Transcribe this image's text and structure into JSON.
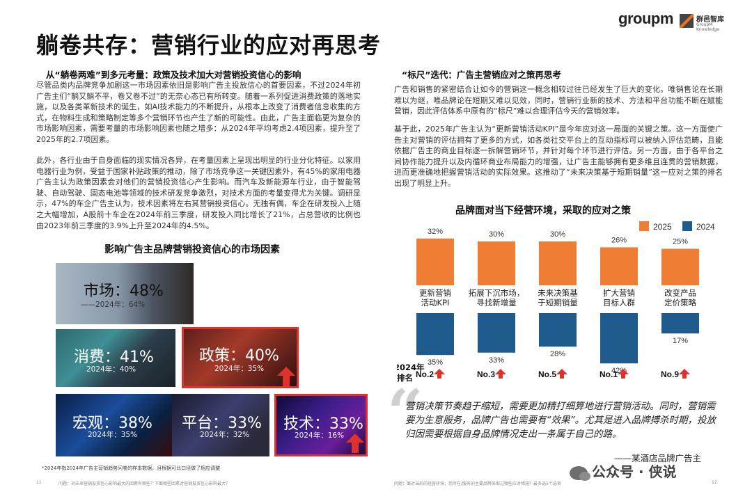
{
  "header": {
    "logo_groupm": "groupm",
    "logo_qunyi_cn": "群邑智库",
    "logo_qunyi_en": "GroupM Knowledge"
  },
  "title": "躺卷共存：营销行业的应对再思考",
  "left": {
    "subtitle": "从“躺卷两难”到多元考量：政策及技术加大对营销投资信心的影响",
    "p1": "尽管品类内品牌竞争加剧这一市场因素依旧是影响广告主投放信心的首要因素，不过2024年初广告主们“躺又躺不平，卷又卷不过”的无奈心态已有所转变。随着一系列促进消费政策的落地实施，以及各类革新技术的诞生，如AI技术能力的不断提升，从根本上改变了消费者信息收集的方式，在物料生成和策略制定等多个营销环节也产生了新的可能性。由此，广告主面临更为复杂的市场影响因素，需要考量的市场影响因素也随之增多：从2024年平均考虑2.4项因素，提升至了2025年的2.7项因素。",
    "p2": "此外，各行业由于自身面临的现实情况各异，在考量因素上呈现出明显的行业分化特征。以家用电器行业为例，受益于国家补贴政策的推动，除了市场竞争这一关键因素外，有45%的家用电器广告主认为政策因素会对他们的营销投资信心产生影响。而汽车及新能源车行业，由于智能驾驶、自动驾驶、固态电池等领域的技术研发竞争激烈，对技术方面的考量变得尤为关键。调研显示，47%的车企广告主认为，技术因素将左右其营销投资信心。无独有偶，车企在研发投入上随之大幅增加，A股前十车企在2024年前三季度，研发投入同比增长了21%，占总营收的比例也由2023年前三季度的3.9%上升至2024年的4.5%。",
    "factors_title": "影响广告主品牌营销投资信心的市场因素",
    "tiles": [
      {
        "name": "市场",
        "main": "市场：48%",
        "prev": "——2024年：64%",
        "value": 48,
        "prev_value": 64
      },
      {
        "name": "消费",
        "main": "消费：41%",
        "prev": "2024年：40%",
        "value": 41,
        "prev_value": 40
      },
      {
        "name": "政策",
        "main": "政策：40%",
        "prev": "2024年：35%",
        "value": 40,
        "prev_value": 35
      },
      {
        "name": "宏观",
        "main": "宏观：38%",
        "prev": "2024年：35%",
        "value": 38,
        "prev_value": 35
      },
      {
        "name": "平台",
        "main": "平台：33%",
        "prev": "2024年：32%",
        "value": 33,
        "prev_value": 32
      },
      {
        "name": "技术",
        "main": "技术：33%",
        "prev": "2024年：16%",
        "value": 33,
        "prev_value": 16
      }
    ],
    "footnote": "*2024年指2024年广告主营销趋势问卷的样本数据，且根据可比口径做了相应调整",
    "page_no": "11",
    "question": "问题：对未来营销投资信心影响最大的因素有哪些？下面哪些因素对营销投资信心影响最大？"
  },
  "right": {
    "subtitle": "“标尺”迭代：广告主营销应对之策再思考",
    "p1": "广告和销售的紧密结合让如今的营销这一概念相较过往已经发生了巨大的变化。唯销售论在长期难以为继，唯品牌论在短期又难以见效，同时，营销行业新的技术、方法和平台功能不断在赋能营销，因此评估体系中原有的“标尺”难以合理评估今天的营销效率。",
    "p2": "基于此，2025年广告主认为“更新营销活动KPI”是今年应对这一局面的关键之策。这一方面使广告主对营销的评估拥有了更多的方式，如各类社交平台上的互动指标可以被纳入评估范畴，且能依据广告主的商业目标逐一拆解营销环节，并针对每个环节进行评估。另一方面，由于各平台之间协作能力提升以及内循环商业布局能力的增强，让广告主能够拥有更多维且连贯的营销数据，进而更准确地把握营销活动的实际效果。这推动了“未来决策基于短期销量”这一应对之策的排名出现了明显上升。",
    "quote": "营销决策节奏趋于缩短，需要更加精打细算地进行营销活动。同时，营销需要为生意服务，品牌广告也需要有“效果”。尤其是进入品牌搏杀时期，投放归因需要根据自身品牌情况走出一条属于自己的路。",
    "quote_author": "——某酒店品牌广告主",
    "question": "问题：面对当前的经营环境，您所在/服务的主要品牌采取过哪些应对措施？最多选5个选项",
    "page_no": "12",
    "watermark": "公众号 · 侠说"
  },
  "chart_data": {
    "type": "bar",
    "title": "品牌面对当下经营环境，采取的应对之策",
    "categories": [
      "更新营销活动KPI",
      "拓展下沉市场，寻找新增量",
      "未来决策基于短期销量",
      "扩大营销目标人群",
      "改变产品定价策略"
    ],
    "category_lines": [
      [
        "更新营销",
        "活动KPI"
      ],
      [
        "拓展下沉市场，",
        "寻找新增量"
      ],
      [
        "未来决策基",
        "于短期销量"
      ],
      [
        "扩大营销",
        "目标人群"
      ],
      [
        "改变产品",
        "定价策略"
      ]
    ],
    "series": [
      {
        "name": "2025",
        "values": [
          32,
          30,
          30,
          26,
          25
        ],
        "color": "#ef7d34"
      },
      {
        "name": "2024",
        "values": [
          35,
          33,
          28,
          42,
          17
        ],
        "color": "#1f5a8c"
      }
    ],
    "value_labels_2025": [
      "32%",
      "30%",
      "30%",
      "26%",
      "25%"
    ],
    "value_labels_2024": [
      "35%",
      "33%",
      "28%",
      "42%",
      "17%"
    ],
    "rank_label_lines": [
      "2024年",
      "排名"
    ],
    "ranks_2024": [
      "No.2",
      "No.3",
      "No.5",
      "No.1",
      "No.9"
    ],
    "rank_arrow_color": "#e0322c",
    "legend_position": "top-right"
  }
}
